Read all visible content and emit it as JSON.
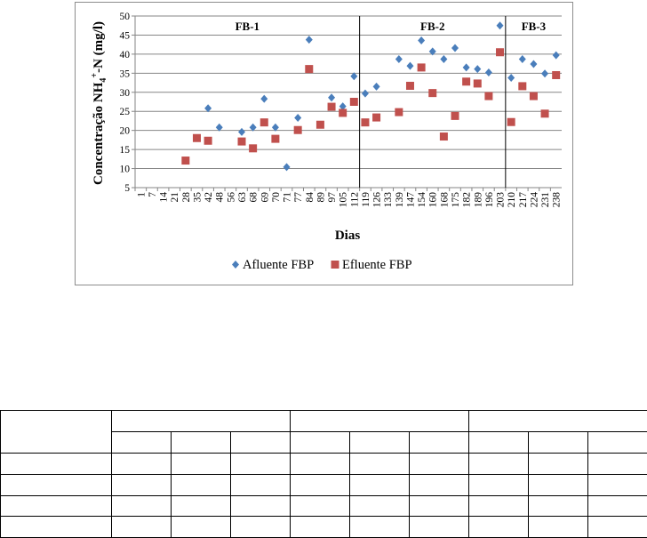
{
  "chart_data": {
    "type": "scatter",
    "title": "",
    "xlabel": "Dias",
    "ylabel_main": "Concentração NH",
    "ylabel_sub": "4",
    "ylabel_sup": "+",
    "ylabel_tail": "-N (mg/l)",
    "ylim": [
      5,
      50
    ],
    "yticks": [
      5,
      10,
      15,
      20,
      25,
      30,
      35,
      40,
      45,
      50
    ],
    "categories": [
      "1",
      "7",
      "14",
      "21",
      "28",
      "35",
      "42",
      "48",
      "56",
      "63",
      "68",
      "69",
      "70",
      "71",
      "77",
      "84",
      "89",
      "97",
      "105",
      "112",
      "119",
      "126",
      "133",
      "139",
      "147",
      "154",
      "160",
      "168",
      "175",
      "182",
      "189",
      "196",
      "203",
      "210",
      "217",
      "224",
      "231",
      "238"
    ],
    "grid": "horizontal",
    "legend_position": "bottom",
    "phase_labels": [
      "FB-1",
      "FB-2",
      "FB-3"
    ],
    "phase_dividers_after_index": [
      19,
      32
    ],
    "series": [
      {
        "name": "Afluente FBP",
        "marker": "diamond",
        "color": "#4a7ebb",
        "points": [
          {
            "i": 6,
            "y": 25.8
          },
          {
            "i": 7,
            "y": 20.8
          },
          {
            "i": 9,
            "y": 19.6
          },
          {
            "i": 10,
            "y": 20.8
          },
          {
            "i": 11,
            "y": 28.3
          },
          {
            "i": 12,
            "y": 20.8
          },
          {
            "i": 13,
            "y": 10.4
          },
          {
            "i": 14,
            "y": 23.3
          },
          {
            "i": 15,
            "y": 43.8
          },
          {
            "i": 17,
            "y": 28.6
          },
          {
            "i": 18,
            "y": 26.3
          },
          {
            "i": 19,
            "y": 34.2
          },
          {
            "i": 20,
            "y": 29.7
          },
          {
            "i": 21,
            "y": 31.5
          },
          {
            "i": 23,
            "y": 38.7
          },
          {
            "i": 24,
            "y": 36.9
          },
          {
            "i": 25,
            "y": 43.6
          },
          {
            "i": 26,
            "y": 40.7
          },
          {
            "i": 27,
            "y": 38.7
          },
          {
            "i": 28,
            "y": 41.6
          },
          {
            "i": 29,
            "y": 36.5
          },
          {
            "i": 30,
            "y": 36.1
          },
          {
            "i": 31,
            "y": 35.2
          },
          {
            "i": 32,
            "y": 47.5
          },
          {
            "i": 33,
            "y": 33.8
          },
          {
            "i": 34,
            "y": 38.7
          },
          {
            "i": 35,
            "y": 37.4
          },
          {
            "i": 36,
            "y": 34.9
          },
          {
            "i": 37,
            "y": 39.7
          }
        ]
      },
      {
        "name": "Efluente FBP",
        "marker": "square",
        "color": "#c0504d",
        "points": [
          {
            "i": 4,
            "y": 12.1
          },
          {
            "i": 5,
            "y": 18.0
          },
          {
            "i": 6,
            "y": 17.3
          },
          {
            "i": 9,
            "y": 17.1
          },
          {
            "i": 10,
            "y": 15.3
          },
          {
            "i": 11,
            "y": 22.1
          },
          {
            "i": 12,
            "y": 17.8
          },
          {
            "i": 14,
            "y": 20.1
          },
          {
            "i": 15,
            "y": 36.1
          },
          {
            "i": 16,
            "y": 21.5
          },
          {
            "i": 17,
            "y": 26.2
          },
          {
            "i": 18,
            "y": 24.6
          },
          {
            "i": 19,
            "y": 27.5
          },
          {
            "i": 20,
            "y": 22.1
          },
          {
            "i": 21,
            "y": 23.4
          },
          {
            "i": 23,
            "y": 24.8
          },
          {
            "i": 24,
            "y": 31.7
          },
          {
            "i": 25,
            "y": 36.5
          },
          {
            "i": 26,
            "y": 29.8
          },
          {
            "i": 27,
            "y": 18.4
          },
          {
            "i": 28,
            "y": 23.8
          },
          {
            "i": 29,
            "y": 32.8
          },
          {
            "i": 30,
            "y": 32.3
          },
          {
            "i": 31,
            "y": 29.0
          },
          {
            "i": 32,
            "y": 40.5
          },
          {
            "i": 33,
            "y": 22.2
          },
          {
            "i": 34,
            "y": 31.6
          },
          {
            "i": 35,
            "y": 29.0
          },
          {
            "i": 36,
            "y": 24.4
          },
          {
            "i": 37,
            "y": 34.5
          }
        ]
      }
    ]
  },
  "table": {
    "rows": 6,
    "cols": 10,
    "cells": []
  }
}
